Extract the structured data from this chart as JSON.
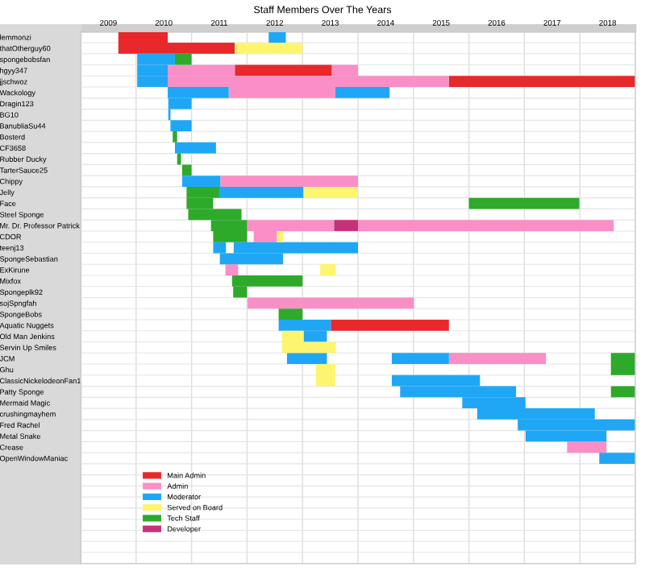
{
  "chart_data": {
    "type": "bar",
    "orientation": "horizontal",
    "title": "Staff Members Over The Years",
    "categories": [
      "lemmonzi",
      "thatOtherguy60",
      "spongebobsfan",
      "hgyy347",
      "jjschwoz",
      "Wackology",
      "Dragin123",
      "BG10",
      "BanubliaSu44",
      "Bosterd",
      "CF3658",
      "Rubber Ducky",
      "TarterSauce25",
      "Chippy",
      "Jelly",
      "Face",
      "Steel Sponge",
      "Mr. Dr. Professor Patrick",
      "CDOR",
      "teenj13",
      "SpongeSebastian",
      "ExKirune",
      "Mixfox",
      "Spongeplk92",
      "sojSpngfah",
      "SpongeBobs",
      "Aquatic Nuggets",
      "Old Man Jenkins",
      "Servin Up Smiles",
      "JCM",
      "Ghu",
      "ClassicNickelodeonFan1",
      "Patty Sponge",
      "Mermaid Magic",
      "crushingmayhem",
      "Fred Rachel",
      "Metal Snake",
      "Crease",
      "OpenWindowManiac",
      null,
      null,
      null,
      null,
      null,
      null,
      null,
      null,
      null
    ],
    "series": [
      {
        "name": "Main Admin",
        "color": "#e8282a",
        "base": [
          2009.68,
          2009.68,
          null,
          2011.78,
          2015.64,
          null,
          null,
          null,
          null,
          null,
          null,
          null,
          null,
          null,
          null,
          null,
          null,
          null,
          null,
          null,
          null,
          null,
          null,
          null,
          null,
          null,
          2013.51,
          null,
          null,
          null,
          null,
          null,
          null,
          null,
          null,
          null,
          null,
          null,
          null,
          null,
          null,
          null,
          null,
          null,
          null,
          null,
          null,
          null
        ],
        "values": [
          0.89,
          2.1,
          null,
          1.75,
          3.36,
          null,
          null,
          null,
          null,
          null,
          null,
          null,
          null,
          null,
          null,
          null,
          null,
          null,
          null,
          null,
          null,
          null,
          null,
          null,
          null,
          null,
          2.13,
          null,
          null,
          null,
          null,
          null,
          null,
          null,
          null,
          null,
          null,
          null,
          null,
          null,
          null,
          null,
          null,
          null,
          null,
          null,
          null,
          null
        ]
      },
      {
        "name": "Admin",
        "color": "#f98fc6",
        "base": [
          null,
          null,
          null,
          2010.57,
          2010.57,
          2011.67,
          null,
          null,
          null,
          null,
          null,
          null,
          null,
          2011.52,
          null,
          null,
          null,
          2012.0,
          2012.12,
          null,
          null,
          2011.61,
          null,
          null,
          2012.01,
          null,
          null,
          null,
          null,
          2015.64,
          null,
          null,
          null,
          null,
          null,
          null,
          null,
          2017.77,
          null,
          null,
          null,
          null,
          null,
          null,
          null,
          null,
          null,
          null
        ],
        "values": [
          null,
          null,
          null,
          1.21,
          5.07,
          1.92,
          null,
          null,
          null,
          null,
          null,
          null,
          null,
          2.48,
          null,
          null,
          null,
          1.57,
          0.42,
          null,
          null,
          0.23,
          null,
          null,
          3.0,
          null,
          null,
          null,
          null,
          1.75,
          null,
          null,
          null,
          null,
          null,
          null,
          null,
          0.71,
          null,
          null,
          null,
          null,
          null,
          null,
          null,
          null,
          null,
          null
        ]
      },
      {
        "color": "#f98fc6",
        "base": [
          null,
          null,
          null,
          2013.53,
          null,
          null,
          null,
          null,
          null,
          null,
          null,
          null,
          null,
          null,
          null,
          null,
          null,
          2014.0,
          null,
          null,
          null,
          null,
          null,
          null,
          null,
          null,
          null,
          null,
          null,
          null,
          null,
          null,
          null,
          null,
          null,
          null,
          null,
          null,
          null,
          null,
          null,
          null,
          null,
          null,
          null,
          null,
          null,
          null
        ],
        "values": [
          null,
          null,
          null,
          0.47,
          null,
          null,
          null,
          null,
          null,
          null,
          null,
          null,
          null,
          null,
          null,
          null,
          null,
          4.61,
          null,
          null,
          null,
          null,
          null,
          null,
          null,
          null,
          null,
          null,
          null,
          null,
          null,
          null,
          null,
          null,
          null,
          null,
          null,
          null,
          null,
          null,
          null,
          null,
          null,
          null,
          null,
          null,
          null,
          null
        ]
      },
      {
        "name": "Moderator",
        "color": "#1fa7f6",
        "base": [
          2012.39,
          null,
          2010.02,
          2010.02,
          2010.02,
          2010.57,
          2010.58,
          2010.58,
          2010.62,
          null,
          2010.7,
          null,
          null,
          2010.83,
          2011.5,
          null,
          null,
          null,
          null,
          2011.39,
          2011.51,
          null,
          null,
          null,
          null,
          null,
          2012.57,
          2013.02,
          null,
          2012.72,
          null,
          2014.61,
          2014.76,
          2015.88,
          2016.15,
          2016.88,
          2017.02,
          null,
          2018.35,
          null,
          null,
          null,
          null,
          null,
          null,
          null,
          null,
          null
        ],
        "values": [
          0.31,
          null,
          0.68,
          0.55,
          0.55,
          1.1,
          0.42,
          0.04,
          0.38,
          null,
          0.74,
          null,
          null,
          0.69,
          1.52,
          null,
          null,
          null,
          null,
          0.23,
          1.14,
          null,
          null,
          null,
          null,
          null,
          0.94,
          0.42,
          null,
          0.72,
          null,
          1.59,
          2.09,
          1.14,
          2.12,
          2.12,
          1.46,
          null,
          0.65,
          null,
          null,
          null,
          null,
          null,
          null,
          null,
          null,
          null
        ]
      },
      {
        "color": "#1fa7f6",
        "base": [
          null,
          null,
          null,
          null,
          null,
          2013.59,
          null,
          null,
          null,
          null,
          null,
          null,
          null,
          null,
          null,
          null,
          null,
          null,
          null,
          2011.76,
          null,
          null,
          null,
          null,
          null,
          null,
          null,
          null,
          null,
          2014.61,
          null,
          null,
          null,
          null,
          null,
          null,
          null,
          null,
          null,
          null,
          null,
          null,
          null,
          null,
          null,
          null,
          null,
          null
        ],
        "values": [
          null,
          null,
          null,
          null,
          null,
          0.98,
          null,
          null,
          null,
          null,
          null,
          null,
          null,
          null,
          null,
          null,
          null,
          null,
          null,
          2.24,
          null,
          null,
          null,
          null,
          null,
          null,
          null,
          null,
          null,
          1.03,
          null,
          null,
          null,
          null,
          null,
          null,
          null,
          null,
          null,
          null,
          null,
          null,
          null,
          null,
          null,
          null,
          null,
          null
        ]
      },
      {
        "name": "Served on Board",
        "color": "#fdf56e",
        "base": [
          null,
          2011.78,
          null,
          null,
          null,
          null,
          null,
          null,
          null,
          null,
          null,
          null,
          null,
          null,
          2013.02,
          null,
          null,
          null,
          2012.54,
          null,
          null,
          2013.32,
          null,
          null,
          null,
          null,
          null,
          2012.63,
          2012.63,
          null,
          2013.24,
          2013.24,
          null,
          null,
          null,
          null,
          null,
          null,
          null,
          null,
          null,
          null,
          null,
          null,
          null,
          null,
          null,
          null
        ],
        "values": [
          null,
          1.22,
          null,
          null,
          null,
          null,
          null,
          null,
          null,
          null,
          null,
          null,
          null,
          null,
          0.98,
          null,
          null,
          null,
          0.11,
          null,
          null,
          0.28,
          null,
          null,
          null,
          null,
          null,
          0.39,
          0.97,
          null,
          0.35,
          0.35,
          null,
          null,
          null,
          null,
          null,
          null,
          null,
          null,
          null,
          null,
          null,
          null,
          null,
          null,
          null,
          null
        ]
      },
      {
        "name": "Tech Staff",
        "color": "#2eaa2a",
        "base": [
          null,
          null,
          2010.7,
          null,
          null,
          null,
          null,
          null,
          null,
          2010.66,
          null,
          2010.74,
          2010.83,
          null,
          2010.91,
          2010.91,
          2010.94,
          2011.35,
          2011.39,
          null,
          null,
          null,
          2011.73,
          2011.75,
          null,
          2012.57,
          null,
          null,
          null,
          2018.56,
          2018.56,
          null,
          2018.56,
          null,
          null,
          null,
          null,
          null,
          null,
          null,
          null,
          null,
          null,
          null,
          null,
          null,
          null,
          null
        ],
        "values": [
          null,
          null,
          0.3,
          null,
          null,
          null,
          null,
          null,
          null,
          0.08,
          null,
          0.07,
          0.17,
          null,
          0.59,
          0.48,
          0.96,
          0.65,
          0.61,
          null,
          null,
          null,
          1.27,
          0.25,
          null,
          0.43,
          null,
          null,
          null,
          0.44,
          0.44,
          null,
          0.44,
          null,
          null,
          null,
          null,
          null,
          null,
          null,
          null,
          null,
          null,
          null,
          null,
          null,
          null,
          null
        ]
      },
      {
        "color": "#2eaa2a",
        "base": [
          null,
          null,
          null,
          null,
          null,
          null,
          null,
          null,
          null,
          null,
          null,
          null,
          null,
          null,
          null,
          2016.0,
          null,
          null,
          null,
          null,
          null,
          null,
          null,
          null,
          null,
          null,
          null,
          null,
          null,
          null,
          null,
          null,
          null,
          null,
          null,
          null,
          null,
          null,
          null,
          null,
          null,
          null,
          null,
          null,
          null,
          null,
          null,
          null
        ],
        "values": [
          null,
          null,
          null,
          null,
          null,
          null,
          null,
          null,
          null,
          null,
          null,
          null,
          null,
          null,
          null,
          1.99,
          null,
          null,
          null,
          null,
          null,
          null,
          null,
          null,
          null,
          null,
          null,
          null,
          null,
          null,
          null,
          null,
          null,
          null,
          null,
          null,
          null,
          null,
          null,
          null,
          null,
          null,
          null,
          null,
          null,
          null,
          null,
          null
        ]
      },
      {
        "name": "Developer",
        "color": "#c8317a",
        "base": [
          null,
          null,
          null,
          null,
          null,
          null,
          null,
          null,
          null,
          null,
          null,
          null,
          null,
          null,
          null,
          null,
          null,
          2013.57,
          null,
          null,
          null,
          null,
          null,
          null,
          null,
          null,
          null,
          null,
          null,
          null,
          null,
          null,
          null,
          null,
          null,
          null,
          null,
          null,
          null,
          null,
          null,
          null,
          null,
          null,
          null,
          null,
          null,
          null
        ],
        "values": [
          null,
          null,
          null,
          null,
          null,
          null,
          null,
          null,
          null,
          null,
          null,
          null,
          null,
          null,
          null,
          null,
          null,
          0.43,
          null,
          null,
          null,
          null,
          null,
          null,
          null,
          null,
          null,
          null,
          null,
          null,
          null,
          null,
          null,
          null,
          null,
          null,
          null,
          null,
          null,
          null,
          null,
          null,
          null,
          null,
          null,
          null,
          null,
          null
        ]
      }
    ],
    "xlim": [
      2009,
      2019
    ],
    "xticks": [
      {
        "value": 2009.5,
        "label": "2009"
      },
      {
        "value": 2010.5,
        "label": "2010"
      },
      {
        "value": 2011.5,
        "label": "2011"
      },
      {
        "value": 2012.5,
        "label": "2012"
      },
      {
        "value": 2013.5,
        "label": "2013"
      },
      {
        "value": 2014.5,
        "label": "2014"
      },
      {
        "value": 2015.5,
        "label": "2015"
      },
      {
        "value": 2016.5,
        "label": "2016"
      },
      {
        "value": 2017.5,
        "label": "2017"
      },
      {
        "value": 2018.5,
        "label": "2018"
      }
    ],
    "grid": true,
    "legend": "bottom left"
  }
}
